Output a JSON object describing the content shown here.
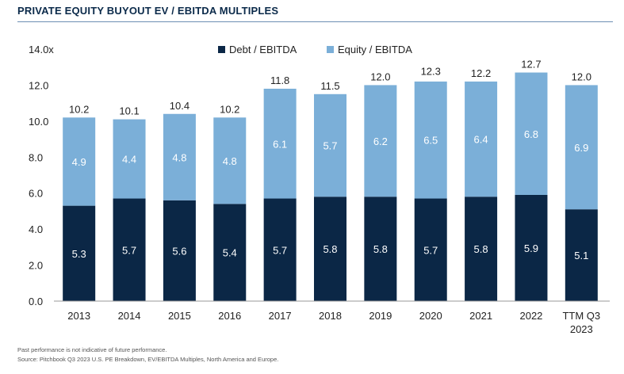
{
  "title": "PRIVATE EQUITY BUYOUT EV / EBITDA MULTIPLES",
  "footnotes": [
    "Past performance is not indicative of future performance.",
    "Source: Pitchbook Q3 2023 U.S. PE Breakdown, EV/EBITDA Multiples, North America and Europe."
  ],
  "chart_data": {
    "type": "bar",
    "stacked": true,
    "title": "PRIVATE EQUITY BUYOUT EV / EBITDA MULTIPLES",
    "categories": [
      "2013",
      "2014",
      "2015",
      "2016",
      "2017",
      "2018",
      "2019",
      "2020",
      "2021",
      "2022",
      "TTM Q3 2023"
    ],
    "category_lines": [
      [
        "2013"
      ],
      [
        "2014"
      ],
      [
        "2015"
      ],
      [
        "2016"
      ],
      [
        "2017"
      ],
      [
        "2018"
      ],
      [
        "2019"
      ],
      [
        "2020"
      ],
      [
        "2021"
      ],
      [
        "2022"
      ],
      [
        "TTM Q3",
        "2023"
      ]
    ],
    "series": [
      {
        "name": "Debt / EBITDA",
        "color": "#0b2746",
        "label_color": "#ffffff",
        "values": [
          5.3,
          5.7,
          5.6,
          5.4,
          5.7,
          5.8,
          5.8,
          5.7,
          5.8,
          5.9,
          5.1
        ]
      },
      {
        "name": "Equity / EBITDA",
        "color": "#7bafd8",
        "label_color": "#ffffff",
        "values": [
          4.9,
          4.4,
          4.8,
          4.8,
          6.1,
          5.7,
          6.2,
          6.5,
          6.4,
          6.8,
          6.9
        ]
      }
    ],
    "totals": [
      10.2,
      10.1,
      10.4,
      10.2,
      11.8,
      11.5,
      12.0,
      12.3,
      12.2,
      12.7,
      12.0
    ],
    "y_ticks": [
      "0.0",
      "2.0",
      "4.0",
      "6.0",
      "8.0",
      "10.0",
      "12.0",
      "14.0x"
    ],
    "ylim": [
      0,
      14
    ],
    "legend_position": "top-center",
    "xlabel": "",
    "ylabel": ""
  }
}
